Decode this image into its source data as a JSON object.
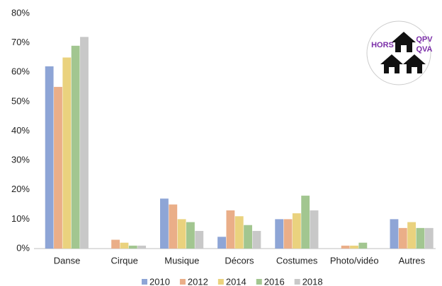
{
  "chart_data": {
    "type": "bar",
    "categories": [
      "Danse",
      "Cirque",
      "Musique",
      "Décors",
      "Costumes",
      "Photo/vidéo",
      "Autres"
    ],
    "series": [
      {
        "name": "2010",
        "color": "#8ea5d6",
        "values": [
          62,
          0,
          17,
          4,
          10,
          0,
          10
        ]
      },
      {
        "name": "2012",
        "color": "#eaae88",
        "values": [
          55,
          3,
          15,
          13,
          10,
          1,
          7
        ]
      },
      {
        "name": "2014",
        "color": "#ead27e",
        "values": [
          65,
          2,
          10,
          11,
          12,
          1,
          9
        ]
      },
      {
        "name": "2016",
        "color": "#a2c690",
        "values": [
          69,
          1,
          9,
          8,
          18,
          2,
          7
        ]
      },
      {
        "name": "2018",
        "color": "#c8c8c8",
        "values": [
          72,
          1,
          6,
          6,
          13,
          0,
          7
        ]
      }
    ],
    "ylim": [
      0,
      80
    ],
    "yticks": [
      {
        "value": 0,
        "label": "0%"
      },
      {
        "value": 10,
        "label": "10%"
      },
      {
        "value": 20,
        "label": "20%"
      },
      {
        "value": 30,
        "label": "30%"
      },
      {
        "value": 40,
        "label": "40%"
      },
      {
        "value": 50,
        "label": "50%"
      },
      {
        "value": 60,
        "label": "60%"
      },
      {
        "value": 70,
        "label": "70%"
      },
      {
        "value": 80,
        "label": "80%"
      }
    ],
    "grid": false,
    "legend": "bottom",
    "annotations": [
      "HORS",
      "QPV",
      "QVA"
    ]
  }
}
